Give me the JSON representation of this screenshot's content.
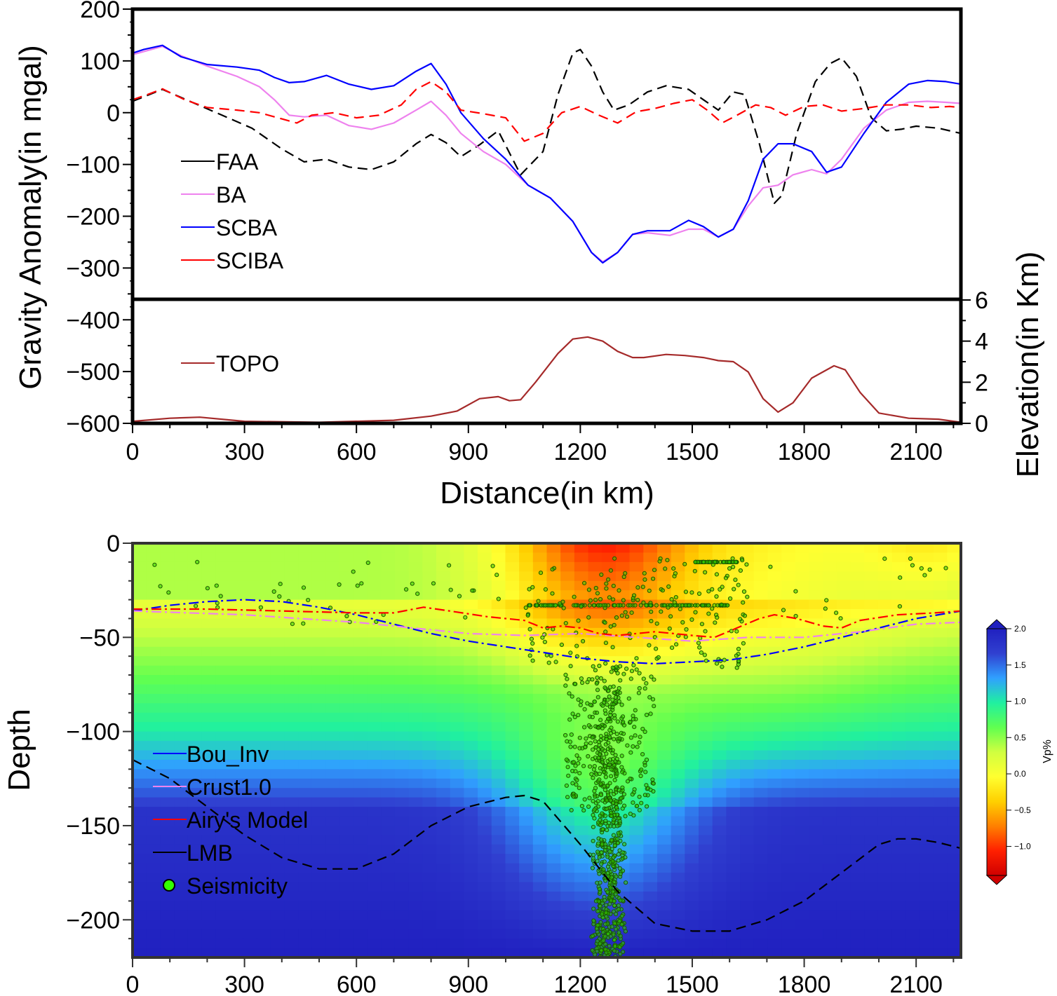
{
  "chart_data": [
    {
      "type": "line",
      "ylabel": "Gravity Anomaly(in mgal)",
      "xlabel": "Distance(in km)",
      "xlim": [
        0,
        2220
      ],
      "ylim": [
        -600,
        200
      ],
      "y_ticks": [
        "200",
        "100",
        "0",
        "−100",
        "−200",
        "−300",
        "−400",
        "−500",
        "−600"
      ],
      "x_ticks": [
        "0",
        "300",
        "600",
        "900",
        "1200",
        "1500",
        "1800",
        "2100"
      ],
      "legend_placement": "left",
      "series": [
        {
          "name": "FAA",
          "color": "#000000",
          "dash": "dashed",
          "x": [
            0,
            80,
            160,
            240,
            320,
            400,
            460,
            520,
            580,
            640,
            700,
            760,
            800,
            840,
            880,
            930,
            980,
            1040,
            1100,
            1140,
            1180,
            1200,
            1230,
            1260,
            1290,
            1330,
            1380,
            1430,
            1490,
            1530,
            1570,
            1610,
            1640,
            1680,
            1720,
            1740,
            1780,
            1830,
            1870,
            1900,
            1940,
            1980,
            2020,
            2060,
            2100,
            2160,
            2220
          ],
          "y": [
            22,
            45,
            20,
            -5,
            -30,
            -70,
            -95,
            -90,
            -105,
            -110,
            -95,
            -60,
            -42,
            -58,
            -85,
            -62,
            -35,
            -120,
            -75,
            35,
            115,
            122,
            90,
            40,
            5,
            15,
            40,
            52,
            45,
            25,
            5,
            40,
            35,
            -60,
            -175,
            -160,
            -40,
            60,
            95,
            106,
            70,
            -10,
            -35,
            -32,
            -26,
            -30,
            -40
          ]
        },
        {
          "name": "BA",
          "color": "#ee82ee",
          "dash": "solid",
          "x": [
            0,
            30,
            80,
            130,
            200,
            280,
            340,
            380,
            420,
            460,
            520,
            580,
            640,
            700,
            760,
            800,
            840,
            880,
            940,
            1000,
            1060,
            1120,
            1180,
            1230,
            1260,
            1300,
            1340,
            1380,
            1440,
            1490,
            1530,
            1570,
            1610,
            1650,
            1690,
            1730,
            1770,
            1820,
            1860,
            1900,
            1960,
            2020,
            2080,
            2130,
            2180,
            2220
          ],
          "y": [
            112,
            118,
            128,
            110,
            90,
            70,
            50,
            25,
            -5,
            -8,
            -5,
            -25,
            -32,
            -20,
            5,
            22,
            -5,
            -40,
            -75,
            -100,
            -140,
            -165,
            -210,
            -270,
            -288,
            -270,
            -235,
            -232,
            -237,
            -225,
            -225,
            -240,
            -225,
            -180,
            -145,
            -140,
            -120,
            -110,
            -118,
            -90,
            -30,
            5,
            20,
            22,
            20,
            18
          ]
        },
        {
          "name": "SCBA",
          "color": "#0000ff",
          "dash": "solid",
          "x": [
            0,
            30,
            80,
            130,
            200,
            280,
            340,
            380,
            420,
            460,
            520,
            580,
            640,
            700,
            760,
            800,
            840,
            880,
            940,
            1000,
            1060,
            1120,
            1180,
            1230,
            1260,
            1300,
            1340,
            1380,
            1440,
            1490,
            1530,
            1570,
            1610,
            1650,
            1690,
            1730,
            1770,
            1820,
            1860,
            1900,
            1960,
            2020,
            2080,
            2130,
            2180,
            2220
          ],
          "y": [
            115,
            122,
            130,
            108,
            93,
            88,
            82,
            68,
            58,
            60,
            72,
            55,
            45,
            52,
            80,
            95,
            55,
            0,
            -50,
            -90,
            -140,
            -165,
            -210,
            -270,
            -290,
            -270,
            -235,
            -228,
            -228,
            -208,
            -220,
            -240,
            -225,
            -170,
            -90,
            -60,
            -60,
            -75,
            -115,
            -105,
            -40,
            20,
            55,
            62,
            60,
            55
          ]
        },
        {
          "name": "SCIBA",
          "color": "#ff0000",
          "dash": "dashed",
          "x": [
            0,
            40,
            80,
            140,
            200,
            280,
            340,
            400,
            440,
            480,
            540,
            600,
            660,
            720,
            760,
            800,
            840,
            880,
            940,
            1000,
            1050,
            1100,
            1150,
            1200,
            1250,
            1300,
            1350,
            1400,
            1450,
            1500,
            1540,
            1580,
            1620,
            1670,
            1710,
            1750,
            1800,
            1850,
            1900,
            1960,
            2020,
            2080,
            2140,
            2190,
            2220
          ],
          "y": [
            25,
            35,
            46,
            25,
            10,
            5,
            0,
            -12,
            -20,
            -5,
            0,
            -10,
            -5,
            15,
            45,
            60,
            40,
            5,
            -2,
            -10,
            -55,
            -40,
            0,
            12,
            -5,
            -20,
            2,
            8,
            18,
            25,
            5,
            -20,
            -5,
            15,
            10,
            -5,
            12,
            15,
            3,
            8,
            15,
            15,
            10,
            12,
            10
          ]
        }
      ]
    },
    {
      "type": "line",
      "ylabel": "Elevation(in Km)",
      "xlim": [
        0,
        2220
      ],
      "ylim": [
        0,
        6
      ],
      "y_ticks": [
        "6",
        "4",
        "2",
        "0"
      ],
      "legend_placement": "left",
      "series": [
        {
          "name": "TOPO",
          "color": "#a52a2a",
          "dash": "solid",
          "x": [
            0,
            100,
            180,
            300,
            500,
            700,
            800,
            870,
            930,
            980,
            1010,
            1040,
            1080,
            1140,
            1180,
            1220,
            1260,
            1300,
            1340,
            1370,
            1430,
            1480,
            1530,
            1570,
            1610,
            1650,
            1690,
            1730,
            1770,
            1820,
            1880,
            1910,
            1950,
            2000,
            2080,
            2160,
            2220
          ],
          "y": [
            0.1,
            0.25,
            0.3,
            0.1,
            0.05,
            0.15,
            0.35,
            0.6,
            1.2,
            1.3,
            1.1,
            1.15,
            2.0,
            3.4,
            4.1,
            4.2,
            4.0,
            3.5,
            3.2,
            3.2,
            3.35,
            3.3,
            3.2,
            3.05,
            3.0,
            2.5,
            1.2,
            0.55,
            1.0,
            2.2,
            2.8,
            2.6,
            1.5,
            0.5,
            0.25,
            0.2,
            0.05
          ]
        }
      ]
    },
    {
      "type": "heatmap",
      "ylabel": "Depth",
      "xlim": [
        0,
        2220
      ],
      "ylim": [
        -220,
        0
      ],
      "y_ticks": [
        "0",
        "−50",
        "−100",
        "−150",
        "−200"
      ],
      "x_ticks": [
        "0",
        "300",
        "600",
        "900",
        "1200",
        "1500",
        "1800",
        "2100"
      ],
      "legend_placement": "left",
      "colorbar": {
        "label": "Vp%",
        "range": [
          -1.4,
          2.0
        ],
        "ticks": [
          "2.0",
          "1.5",
          "1.0",
          "0.5",
          "0.0",
          "−0.5",
          "−1.0"
        ],
        "colors": [
          "#d00000",
          "#ff2000",
          "#ff8000",
          "#ffd000",
          "#ffff30",
          "#d0ff40",
          "#60ff50",
          "#20f0a0",
          "#30a0ff",
          "#3040d0",
          "#2020c0"
        ]
      },
      "series": [
        {
          "name": "Bou_Inv",
          "color": "#0000ff",
          "dash": "dashdot",
          "x": [
            0,
            100,
            200,
            300,
            400,
            500,
            600,
            700,
            800,
            900,
            1000,
            1100,
            1200,
            1300,
            1400,
            1500,
            1600,
            1700,
            1800,
            1900,
            2000,
            2100,
            2220
          ],
          "y": [
            -36,
            -33,
            -31,
            -30,
            -31,
            -34,
            -38,
            -43,
            -48,
            -52,
            -55,
            -58,
            -61,
            -63,
            -64,
            -63,
            -62,
            -59,
            -55,
            -50,
            -45,
            -40,
            -36
          ]
        },
        {
          "name": "Crust1.0",
          "color": "#ee82ee",
          "dash": "dashdot",
          "x": [
            0,
            150,
            300,
            450,
            600,
            750,
            900,
            1050,
            1200,
            1350,
            1500,
            1650,
            1800,
            1950,
            2100,
            2220
          ],
          "y": [
            -36,
            -37,
            -38,
            -40,
            -42,
            -45,
            -48,
            -49,
            -48,
            -50,
            -52,
            -50,
            -50,
            -47,
            -43,
            -42
          ]
        },
        {
          "name": "Airy's Model",
          "color": "#ff0000",
          "dash": "dashdot",
          "x": [
            0,
            200,
            400,
            600,
            700,
            780,
            850,
            950,
            1000,
            1050,
            1100,
            1150,
            1200,
            1250,
            1300,
            1350,
            1400,
            1450,
            1500,
            1560,
            1620,
            1680,
            1720,
            1780,
            1850,
            1900,
            1950,
            2050,
            2150,
            2220
          ],
          "y": [
            -35,
            -35,
            -36,
            -37,
            -37,
            -34,
            -36,
            -39,
            -40,
            -41,
            -45,
            -44,
            -45,
            -48,
            -49,
            -48,
            -47,
            -48,
            -49,
            -50,
            -45,
            -40,
            -38,
            -40,
            -44,
            -45,
            -41,
            -38,
            -37,
            -36
          ]
        },
        {
          "name": "LMB",
          "color": "#000000",
          "dash": "dashed",
          "x": [
            0,
            100,
            200,
            300,
            400,
            500,
            600,
            700,
            800,
            900,
            1000,
            1050,
            1100,
            1200,
            1300,
            1400,
            1500,
            1600,
            1700,
            1800,
            1900,
            2000,
            2050,
            2100,
            2160,
            2220
          ],
          "y": [
            -115,
            -125,
            -140,
            -155,
            -167,
            -173,
            -173,
            -165,
            -150,
            -140,
            -135,
            -134,
            -137,
            -160,
            -185,
            -202,
            -206,
            -206,
            -200,
            -190,
            -175,
            -160,
            -157,
            -157,
            -159,
            -162
          ]
        },
        {
          "name": "Seismicity",
          "color": "#33cc00",
          "marker": "circle"
        }
      ]
    }
  ]
}
